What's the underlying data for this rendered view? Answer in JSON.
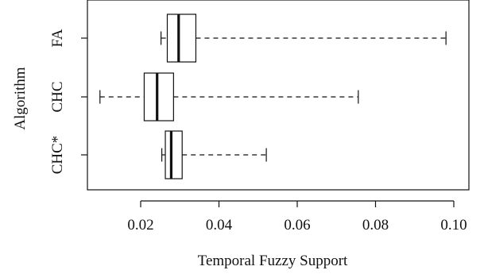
{
  "chart_data": {
    "type": "boxplot",
    "orientation": "horizontal",
    "title": "",
    "xlabel": "Temporal Fuzzy Support",
    "ylabel": "Algorithm",
    "xlim": [
      0.0,
      0.1
    ],
    "xticks": [
      0.02,
      0.04,
      0.06,
      0.08,
      0.1
    ],
    "xtick_labels": [
      "0.02",
      "0.04",
      "0.06",
      "0.08",
      "0.10"
    ],
    "categories": [
      "FA",
      "CHC",
      "CHC*"
    ],
    "boxes": [
      {
        "label": "FA",
        "whisker_low": 0.0252,
        "q1": 0.0268,
        "median": 0.0297,
        "q3": 0.0341,
        "whisker_high": 0.098
      },
      {
        "label": "CHC",
        "whisker_low": 0.0096,
        "q1": 0.0209,
        "median": 0.0242,
        "q3": 0.0284,
        "whisker_high": 0.0756
      },
      {
        "label": "CHC*",
        "whisker_low": 0.0254,
        "q1": 0.0263,
        "median": 0.0278,
        "q3": 0.0306,
        "whisker_high": 0.0521
      }
    ],
    "grid": false,
    "legend": "none",
    "colors": {
      "box_fill": "#ffffff",
      "stroke": "#111111"
    }
  }
}
